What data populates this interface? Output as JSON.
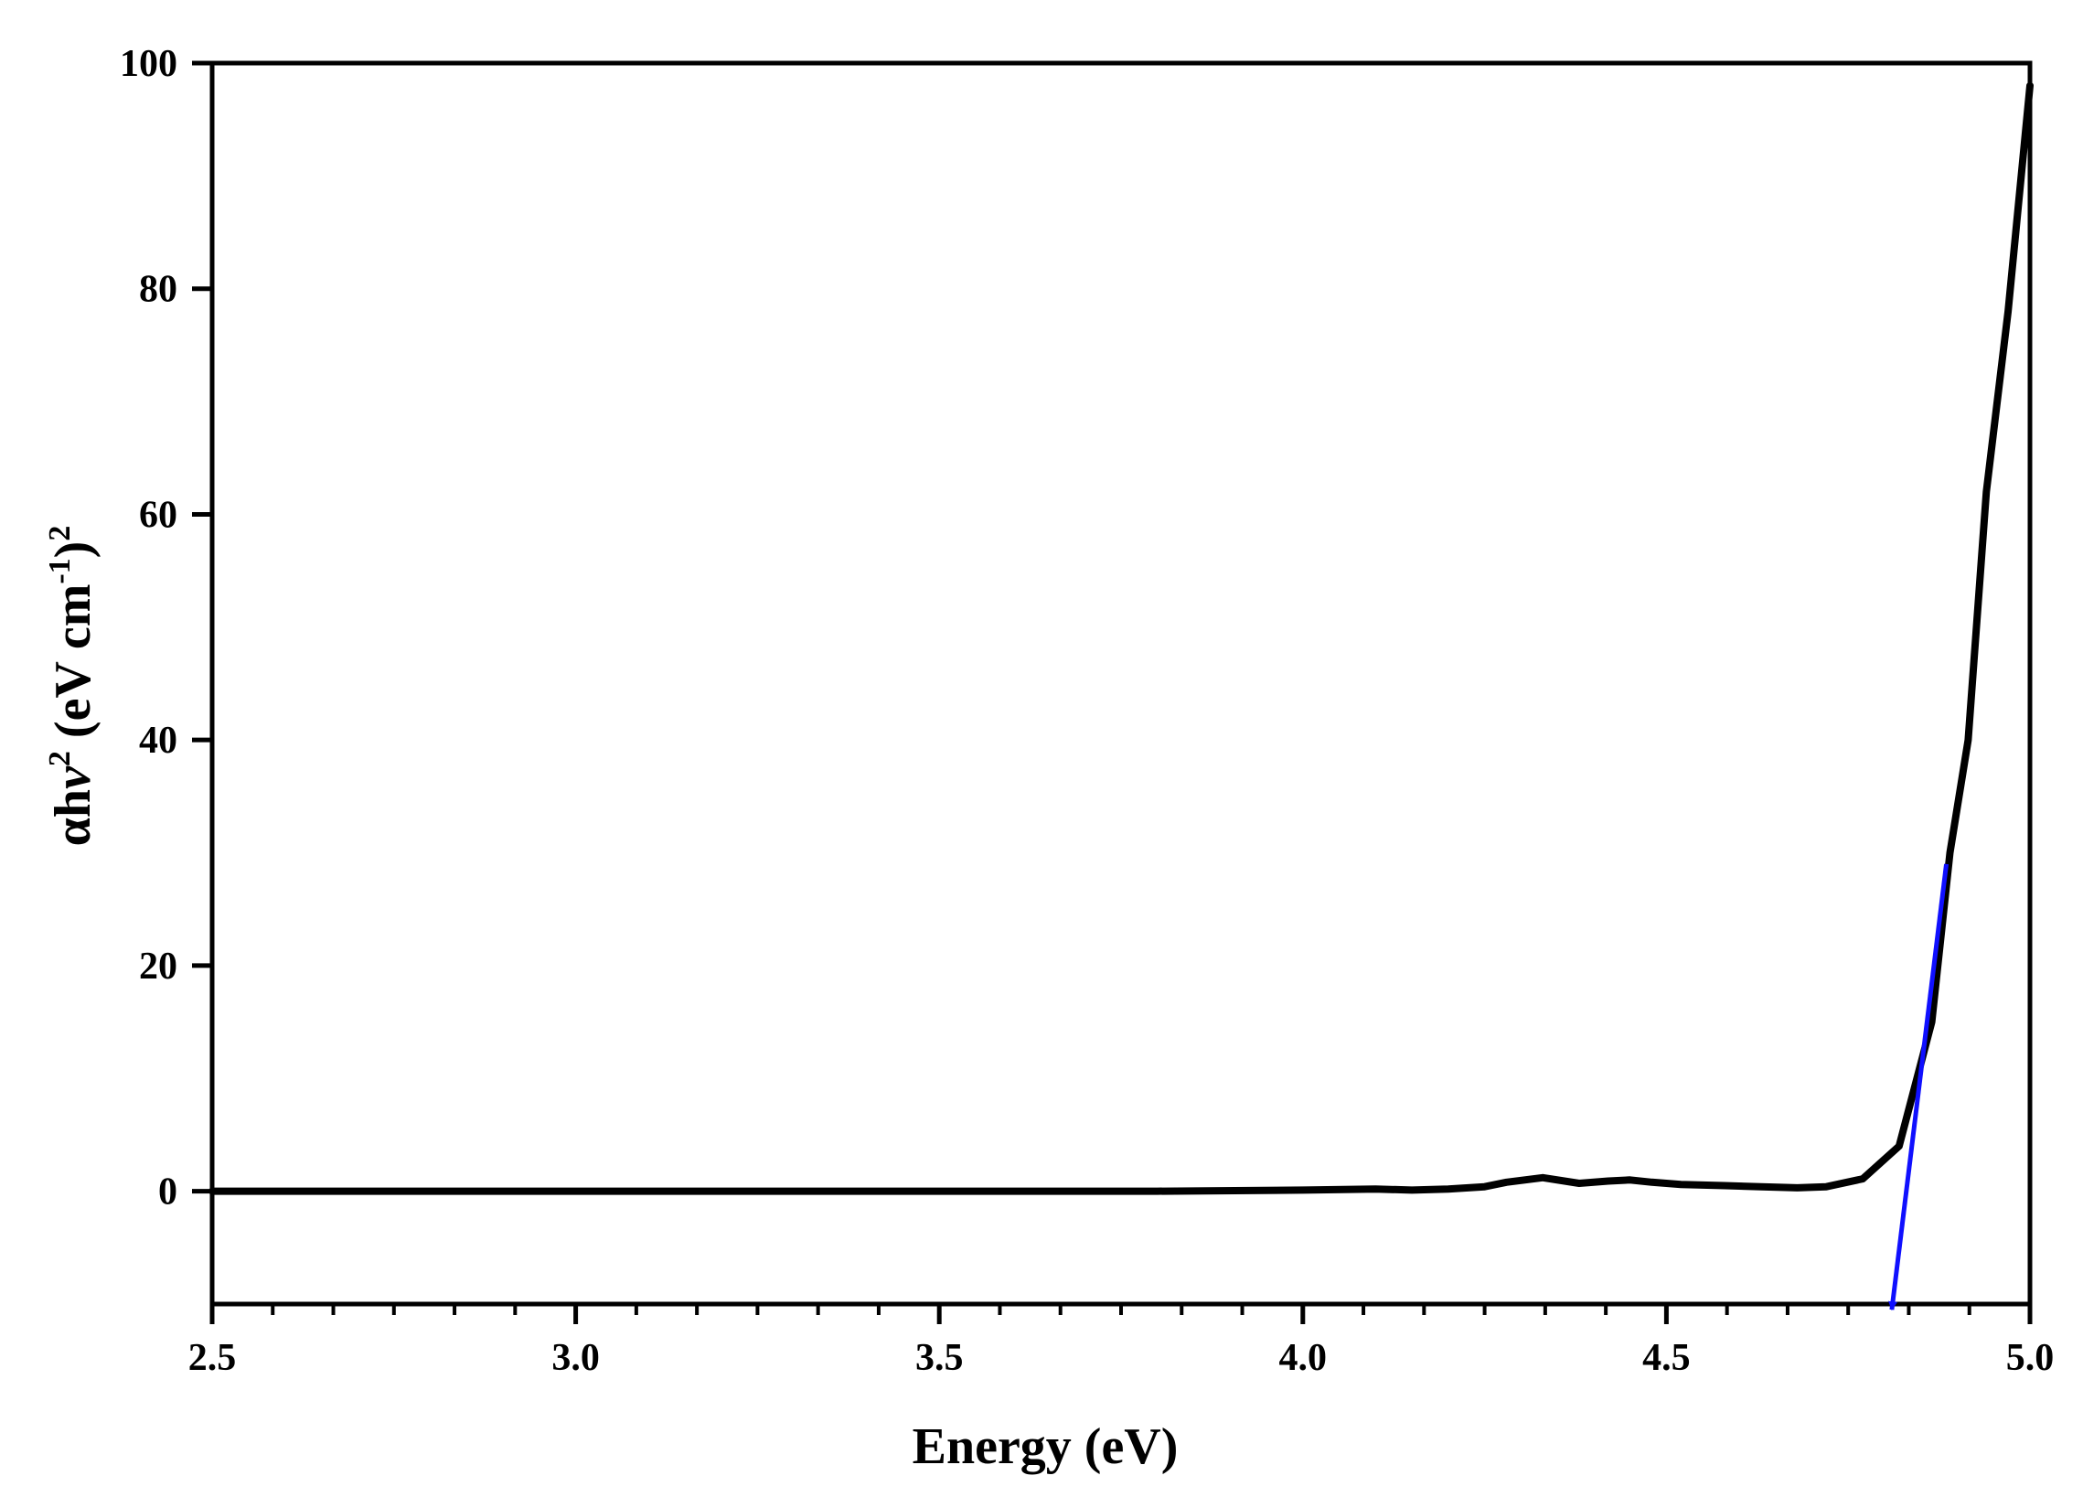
{
  "chart_data": {
    "type": "line",
    "title": "",
    "xlabel": "Energy (eV)",
    "ylabel": {
      "alpha": "α",
      "h": "h",
      "nu": "ν",
      "sup2": "2",
      "units_open": " (eV cm",
      "sup_neg1": "-1",
      "close": ")",
      "sup_outer": "2"
    },
    "xlim": [
      2.5,
      5.0
    ],
    "ylim": [
      -10,
      100
    ],
    "x_ticks": [
      {
        "value": 2.5,
        "label": "2.5"
      },
      {
        "value": 3.0,
        "label": "3.0"
      },
      {
        "value": 3.5,
        "label": "3.5"
      },
      {
        "value": 4.0,
        "label": "4.0"
      },
      {
        "value": 4.5,
        "label": "4.5"
      },
      {
        "value": 5.0,
        "label": "5.0"
      }
    ],
    "x_minor_step": 0.0833,
    "y_ticks": [
      {
        "value": 0,
        "label": "0"
      },
      {
        "value": 20,
        "label": "20"
      },
      {
        "value": 40,
        "label": "40"
      },
      {
        "value": 60,
        "label": "60"
      },
      {
        "value": 80,
        "label": "80"
      },
      {
        "value": 100,
        "label": "100"
      }
    ],
    "grid": false,
    "series": [
      {
        "color": "#000000",
        "x": [
          2.5,
          3.0,
          3.5,
          3.8,
          4.0,
          4.1,
          4.15,
          4.2,
          4.25,
          4.28,
          4.33,
          4.38,
          4.42,
          4.45,
          4.48,
          4.52,
          4.58,
          4.63,
          4.68,
          4.72,
          4.77,
          4.82,
          4.865,
          4.89,
          4.915,
          4.94,
          4.97,
          5.0
        ],
        "y": [
          0,
          0,
          0,
          0,
          0.1,
          0.2,
          0.1,
          0.2,
          0.4,
          0.8,
          1.2,
          0.7,
          0.9,
          1.0,
          0.8,
          0.6,
          0.5,
          0.4,
          0.3,
          0.4,
          1.1,
          4.0,
          15,
          30,
          40,
          62,
          78,
          98
        ]
      }
    ],
    "annotation": {
      "type": "arrow",
      "color": "#1010ff",
      "from": {
        "x": 4.885,
        "y": 29
      },
      "to": {
        "x": 4.81,
        "y": -10.5
      }
    }
  }
}
